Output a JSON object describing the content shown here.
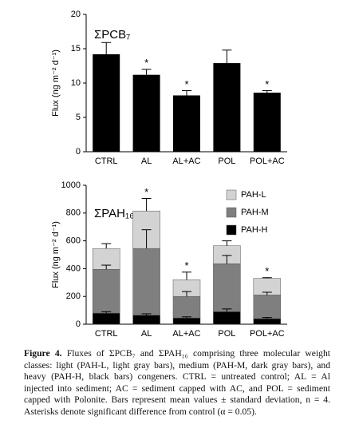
{
  "chart_data": [
    {
      "type": "bar",
      "title": "ΣPCB₇",
      "ylabel": "Flux (ng m⁻² d⁻¹)",
      "categories": [
        "CTRL",
        "AL",
        "AL+AC",
        "POL",
        "POL+AC"
      ],
      "values": [
        14.2,
        11.2,
        8.2,
        12.9,
        8.6
      ],
      "errors": [
        1.7,
        0.8,
        0.7,
        1.9,
        0.3
      ],
      "annotations": [
        null,
        "*",
        "*",
        null,
        "*"
      ],
      "color": "#000000",
      "ylim": [
        0,
        20
      ],
      "yticks": [
        0,
        5,
        10,
        15,
        20
      ]
    },
    {
      "type": "stacked_bar",
      "title": "ΣPAH₁₆",
      "ylabel": "Flux (ng m⁻² d⁻¹)",
      "categories": [
        "CTRL",
        "AL",
        "AL+AC",
        "POL",
        "POL+AC"
      ],
      "series": [
        {
          "name": "PAH-H",
          "color": "#000000",
          "values": [
            80,
            65,
            45,
            90,
            40
          ],
          "errors": [
            10,
            10,
            8,
            20,
            8
          ]
        },
        {
          "name": "PAH-M",
          "color": "#7f7f7f",
          "values": [
            315,
            480,
            155,
            345,
            170
          ],
          "errors": [
            30,
            135,
            35,
            60,
            20
          ]
        },
        {
          "name": "PAH-L",
          "color": "#d3d3d3",
          "values": [
            150,
            270,
            120,
            130,
            120
          ],
          "errors": [
            35,
            90,
            55,
            35,
            5
          ]
        }
      ],
      "annotations": [
        null,
        "*",
        "*",
        null,
        "*"
      ],
      "legend": "upper right",
      "ylim": [
        0,
        1000
      ],
      "yticks": [
        0,
        200,
        400,
        600,
        800,
        1000
      ]
    }
  ],
  "caption": {
    "label": "Figure 4.",
    "text": "Fluxes of ΣPCB₇ and ΣPAH₁₆ comprising three molecular weight classes: light (PAH-L, light gray bars), medium (PAH-M, dark gray bars), and heavy (PAH-H, black bars) congeners. CTRL = untreated control; AL = Al injected into sediment; AC = sediment capped with AC, and POL = sediment capped with Polonite. Bars represent mean values ± standard deviation, n = 4. Asterisks denote significant difference from control (α = 0.05)."
  }
}
